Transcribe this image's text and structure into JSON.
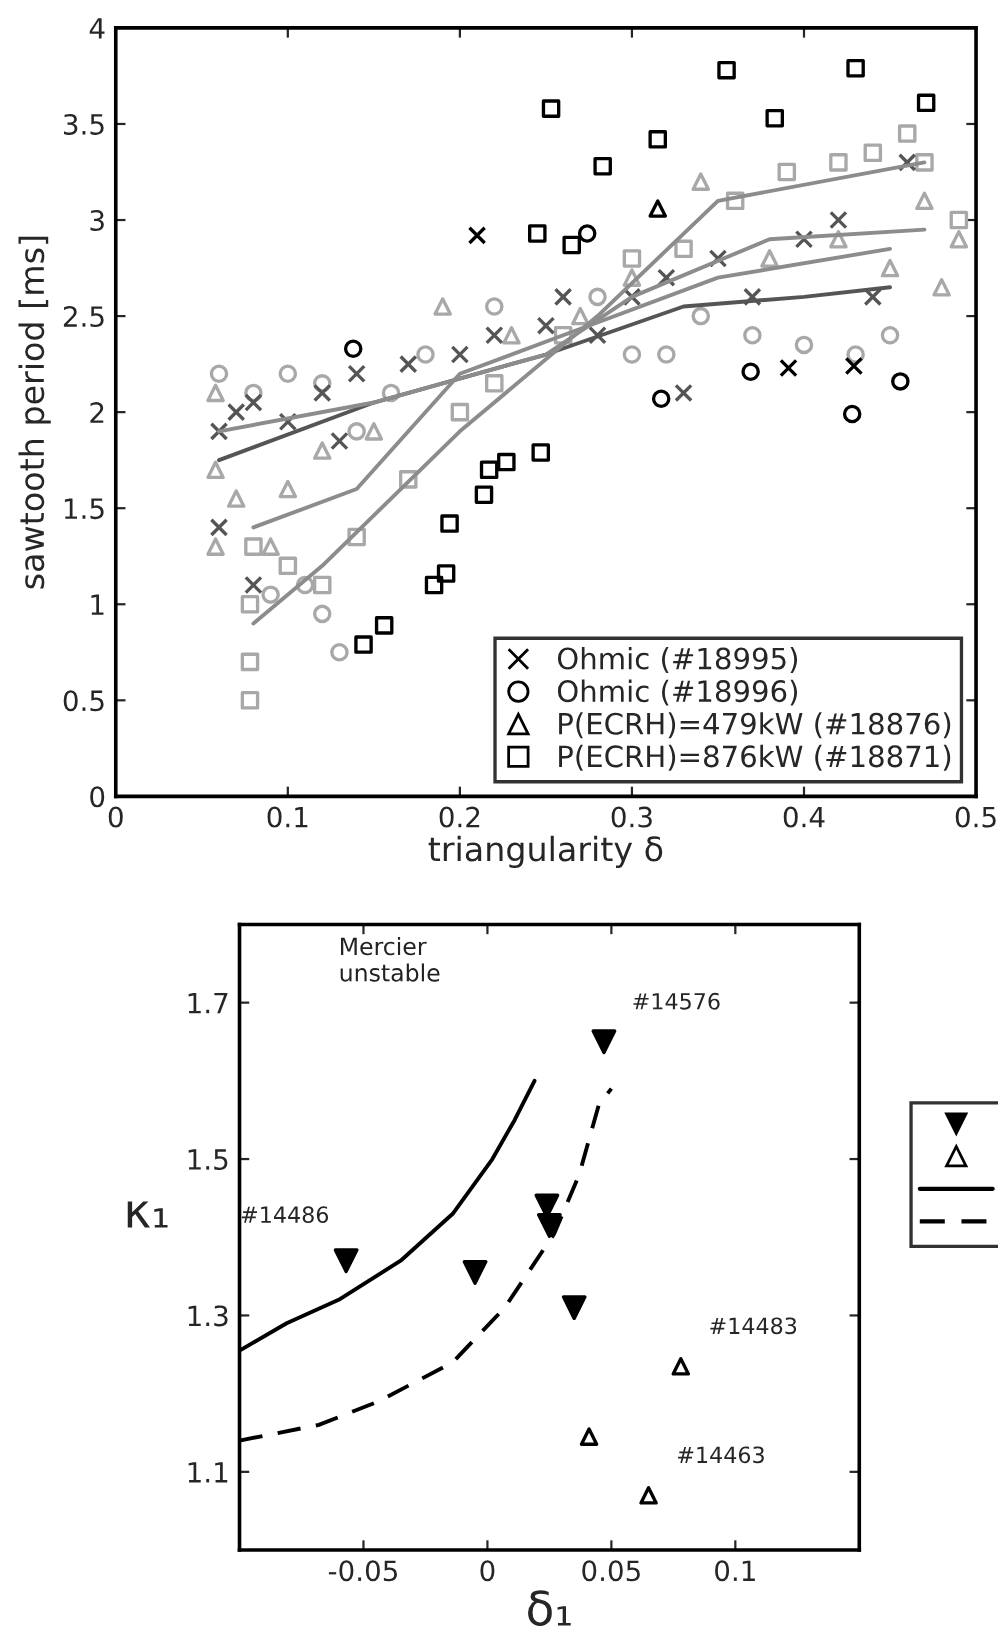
{
  "chart_data": [
    {
      "type": "scatter",
      "xlabel": "triangularity δ",
      "ylabel": "sawtooth period [ms]",
      "xlim": [
        0,
        0.5
      ],
      "ylim": [
        0,
        4
      ],
      "xticks": [
        0,
        0.1,
        0.2,
        0.3,
        0.4,
        0.5
      ],
      "yticks": [
        0,
        0.5,
        1,
        1.5,
        2,
        2.5,
        3,
        3.5,
        4
      ],
      "grid": false,
      "legend": "bottom right",
      "series": [
        {
          "color": "#a8a8a8",
          "marker": "circle",
          "x": [
            0.06,
            0.08,
            0.1,
            0.12,
            0.14,
            0.16,
            0.18,
            0.2,
            0.22,
            0.25,
            0.28,
            0.3,
            0.32,
            0.34,
            0.37,
            0.4,
            0.43,
            0.45,
            0.09,
            0.11,
            0.13,
            0.12
          ],
          "values": [
            2.2,
            2.1,
            2.2,
            2.15,
            1.9,
            2.1,
            2.3,
            null,
            2.55,
            null,
            2.6,
            2.3,
            2.3,
            2.5,
            2.4,
            2.35,
            2.3,
            2.4,
            1.05,
            1.1,
            0.75,
            0.95
          ]
        },
        {
          "color": "#a8a8a8",
          "marker": "triangle",
          "x": [
            0.058,
            0.058,
            0.058,
            0.07,
            0.09,
            0.1,
            0.12,
            0.15,
            0.19,
            0.2,
            0.23,
            0.27,
            0.3,
            0.34,
            0.38,
            0.42,
            0.45,
            0.47,
            0.48,
            0.49
          ],
          "values": [
            1.3,
            1.7,
            2.1,
            1.55,
            1.3,
            1.6,
            1.8,
            1.9,
            2.55,
            null,
            2.4,
            2.5,
            2.7,
            3.2,
            2.8,
            2.9,
            2.75,
            3.1,
            2.65,
            2.9
          ]
        },
        {
          "color": "#a8a8a8",
          "marker": "square",
          "x": [
            0.078,
            0.078,
            0.078,
            0.08,
            0.1,
            0.12,
            0.14,
            0.17,
            0.2,
            0.22,
            0.26,
            0.3,
            0.33,
            0.36,
            0.39,
            0.42,
            0.44,
            0.46,
            0.47,
            0.49
          ],
          "values": [
            0.5,
            0.7,
            1.0,
            1.3,
            1.2,
            1.1,
            1.35,
            1.65,
            2.0,
            2.15,
            2.4,
            2.8,
            2.85,
            3.1,
            3.25,
            3.3,
            3.35,
            3.45,
            3.3,
            3.0
          ]
        },
        {
          "color": "#555555",
          "marker": "cross",
          "x": [
            0.06,
            0.07,
            0.08,
            0.1,
            0.12,
            0.14,
            0.13,
            0.17,
            0.2,
            0.22,
            0.25,
            0.26,
            0.28,
            0.3,
            0.32,
            0.35,
            0.37,
            0.4,
            0.42,
            0.44,
            0.46,
            0.33,
            0.08,
            0.06
          ],
          "values": [
            1.9,
            2.0,
            2.05,
            1.95,
            2.1,
            2.2,
            1.85,
            2.25,
            2.3,
            2.4,
            2.45,
            2.6,
            2.4,
            2.6,
            2.7,
            2.8,
            2.6,
            2.9,
            3.0,
            2.6,
            3.3,
            2.1,
            1.1,
            1.4
          ]
        },
        {
          "type": "line",
          "color": "#555555",
          "marker": "none",
          "line_style": "solid",
          "x": [
            0.06,
            0.15,
            0.25,
            0.33,
            0.4,
            0.45
          ],
          "values": [
            1.75,
            2.05,
            2.3,
            2.55,
            2.6,
            2.65
          ]
        },
        {
          "type": "line",
          "color": "#8c8c8c",
          "marker": "none",
          "line_style": "solid",
          "x": [
            0.06,
            0.15,
            0.25,
            0.3,
            0.38,
            0.47
          ],
          "values": [
            1.9,
            2.05,
            2.3,
            2.6,
            2.9,
            2.95
          ]
        },
        {
          "type": "line",
          "color": "#8c8c8c",
          "marker": "none",
          "line_style": "solid",
          "x": [
            0.08,
            0.12,
            0.2,
            0.28,
            0.35,
            0.47
          ],
          "values": [
            0.9,
            1.2,
            1.9,
            2.5,
            3.1,
            3.3
          ]
        },
        {
          "type": "line",
          "color": "#8c8c8c",
          "marker": "none",
          "line_style": "solid",
          "x": [
            0.08,
            0.14,
            0.2,
            0.26,
            0.35,
            0.45
          ],
          "values": [
            1.4,
            1.6,
            2.2,
            2.4,
            2.7,
            2.85
          ]
        },
        {
          "name": "Ohmic (#18995)",
          "color": "#000000",
          "marker": "cross",
          "x": [
            0.21,
            0.391,
            0.429
          ],
          "values": [
            2.92,
            2.23,
            2.24
          ]
        },
        {
          "name": "Ohmic (#18996)",
          "color": "#000000",
          "marker": "circle",
          "x": [
            0.138,
            0.274,
            0.317,
            0.369,
            0.428,
            0.456
          ],
          "values": [
            2.33,
            2.93,
            2.07,
            2.21,
            1.99,
            2.16
          ]
        },
        {
          "name": "P(ECRH)=479kW (#18876)",
          "color": "#000000",
          "marker": "triangle",
          "x": [
            0.315
          ],
          "values": [
            3.06
          ]
        },
        {
          "name": "P(ECRH)=876kW (#18871)",
          "color": "#000000",
          "marker": "square",
          "x": [
            0.355,
            0.43,
            0.471,
            0.383,
            0.315,
            0.283,
            0.253,
            0.245,
            0.265,
            0.247,
            0.227,
            0.217,
            0.214,
            0.194,
            0.192,
            0.185,
            0.156,
            0.144
          ],
          "values": [
            3.78,
            3.79,
            3.61,
            3.53,
            3.42,
            3.28,
            3.58,
            2.93,
            2.87,
            1.79,
            1.74,
            1.7,
            1.57,
            1.42,
            1.16,
            1.1,
            0.89,
            0.79
          ]
        }
      ]
    },
    {
      "type": "scatter",
      "xlabel": "δ₁",
      "ylabel": "κ₁",
      "xlim": [
        -0.1,
        0.15
      ],
      "ylim": [
        1.0,
        1.8
      ],
      "xticks": [
        {
          "value": -0.05,
          "label": "-0.05"
        },
        0,
        0.05,
        0.1
      ],
      "yticks": [
        1.1,
        1.3,
        1.5,
        1.7
      ],
      "grid": false,
      "legend": "right",
      "annotations": [
        "Mercier\nunstable",
        {
          "text": "#14576",
          "x": 0.047,
          "y": 1.65
        },
        {
          "text": "#14486",
          "x": -0.057,
          "y": 1.37
        },
        {
          "text": "#14483",
          "x": 0.078,
          "y": 1.235
        },
        {
          "text": "#14463",
          "x": 0.065,
          "y": 1.07
        }
      ],
      "series": [
        {
          "color": "#000000",
          "marker": "triangle_down",
          "x": [
            0.047,
            -0.057,
            -0.005,
            0.024,
            0.025,
            0.035
          ],
          "values": [
            1.65,
            1.37,
            1.355,
            1.44,
            1.415,
            1.31
          ]
        },
        {
          "color": "#000000",
          "marker": "triangle",
          "x": [
            0.078,
            0.041,
            0.065
          ],
          "values": [
            1.235,
            1.145,
            1.07
          ]
        },
        {
          "type": "line",
          "color": "#000000",
          "marker": "none",
          "line_style": "solid",
          "x": [
            -0.1,
            -0.081,
            -0.06,
            -0.035,
            -0.014,
            0.002,
            0.011,
            0.019
          ],
          "values": [
            1.255,
            1.29,
            1.32,
            1.37,
            1.43,
            1.5,
            1.55,
            1.6
          ]
        },
        {
          "type": "line",
          "color": "#000000",
          "marker": "none",
          "line_style": "dashed",
          "x": [
            -0.1,
            -0.068,
            -0.044,
            -0.014,
            0.007,
            0.027,
            0.037,
            0.045,
            0.05
          ],
          "values": [
            1.14,
            1.16,
            1.19,
            1.24,
            1.31,
            1.405,
            1.48,
            1.57,
            1.59
          ]
        }
      ]
    }
  ]
}
